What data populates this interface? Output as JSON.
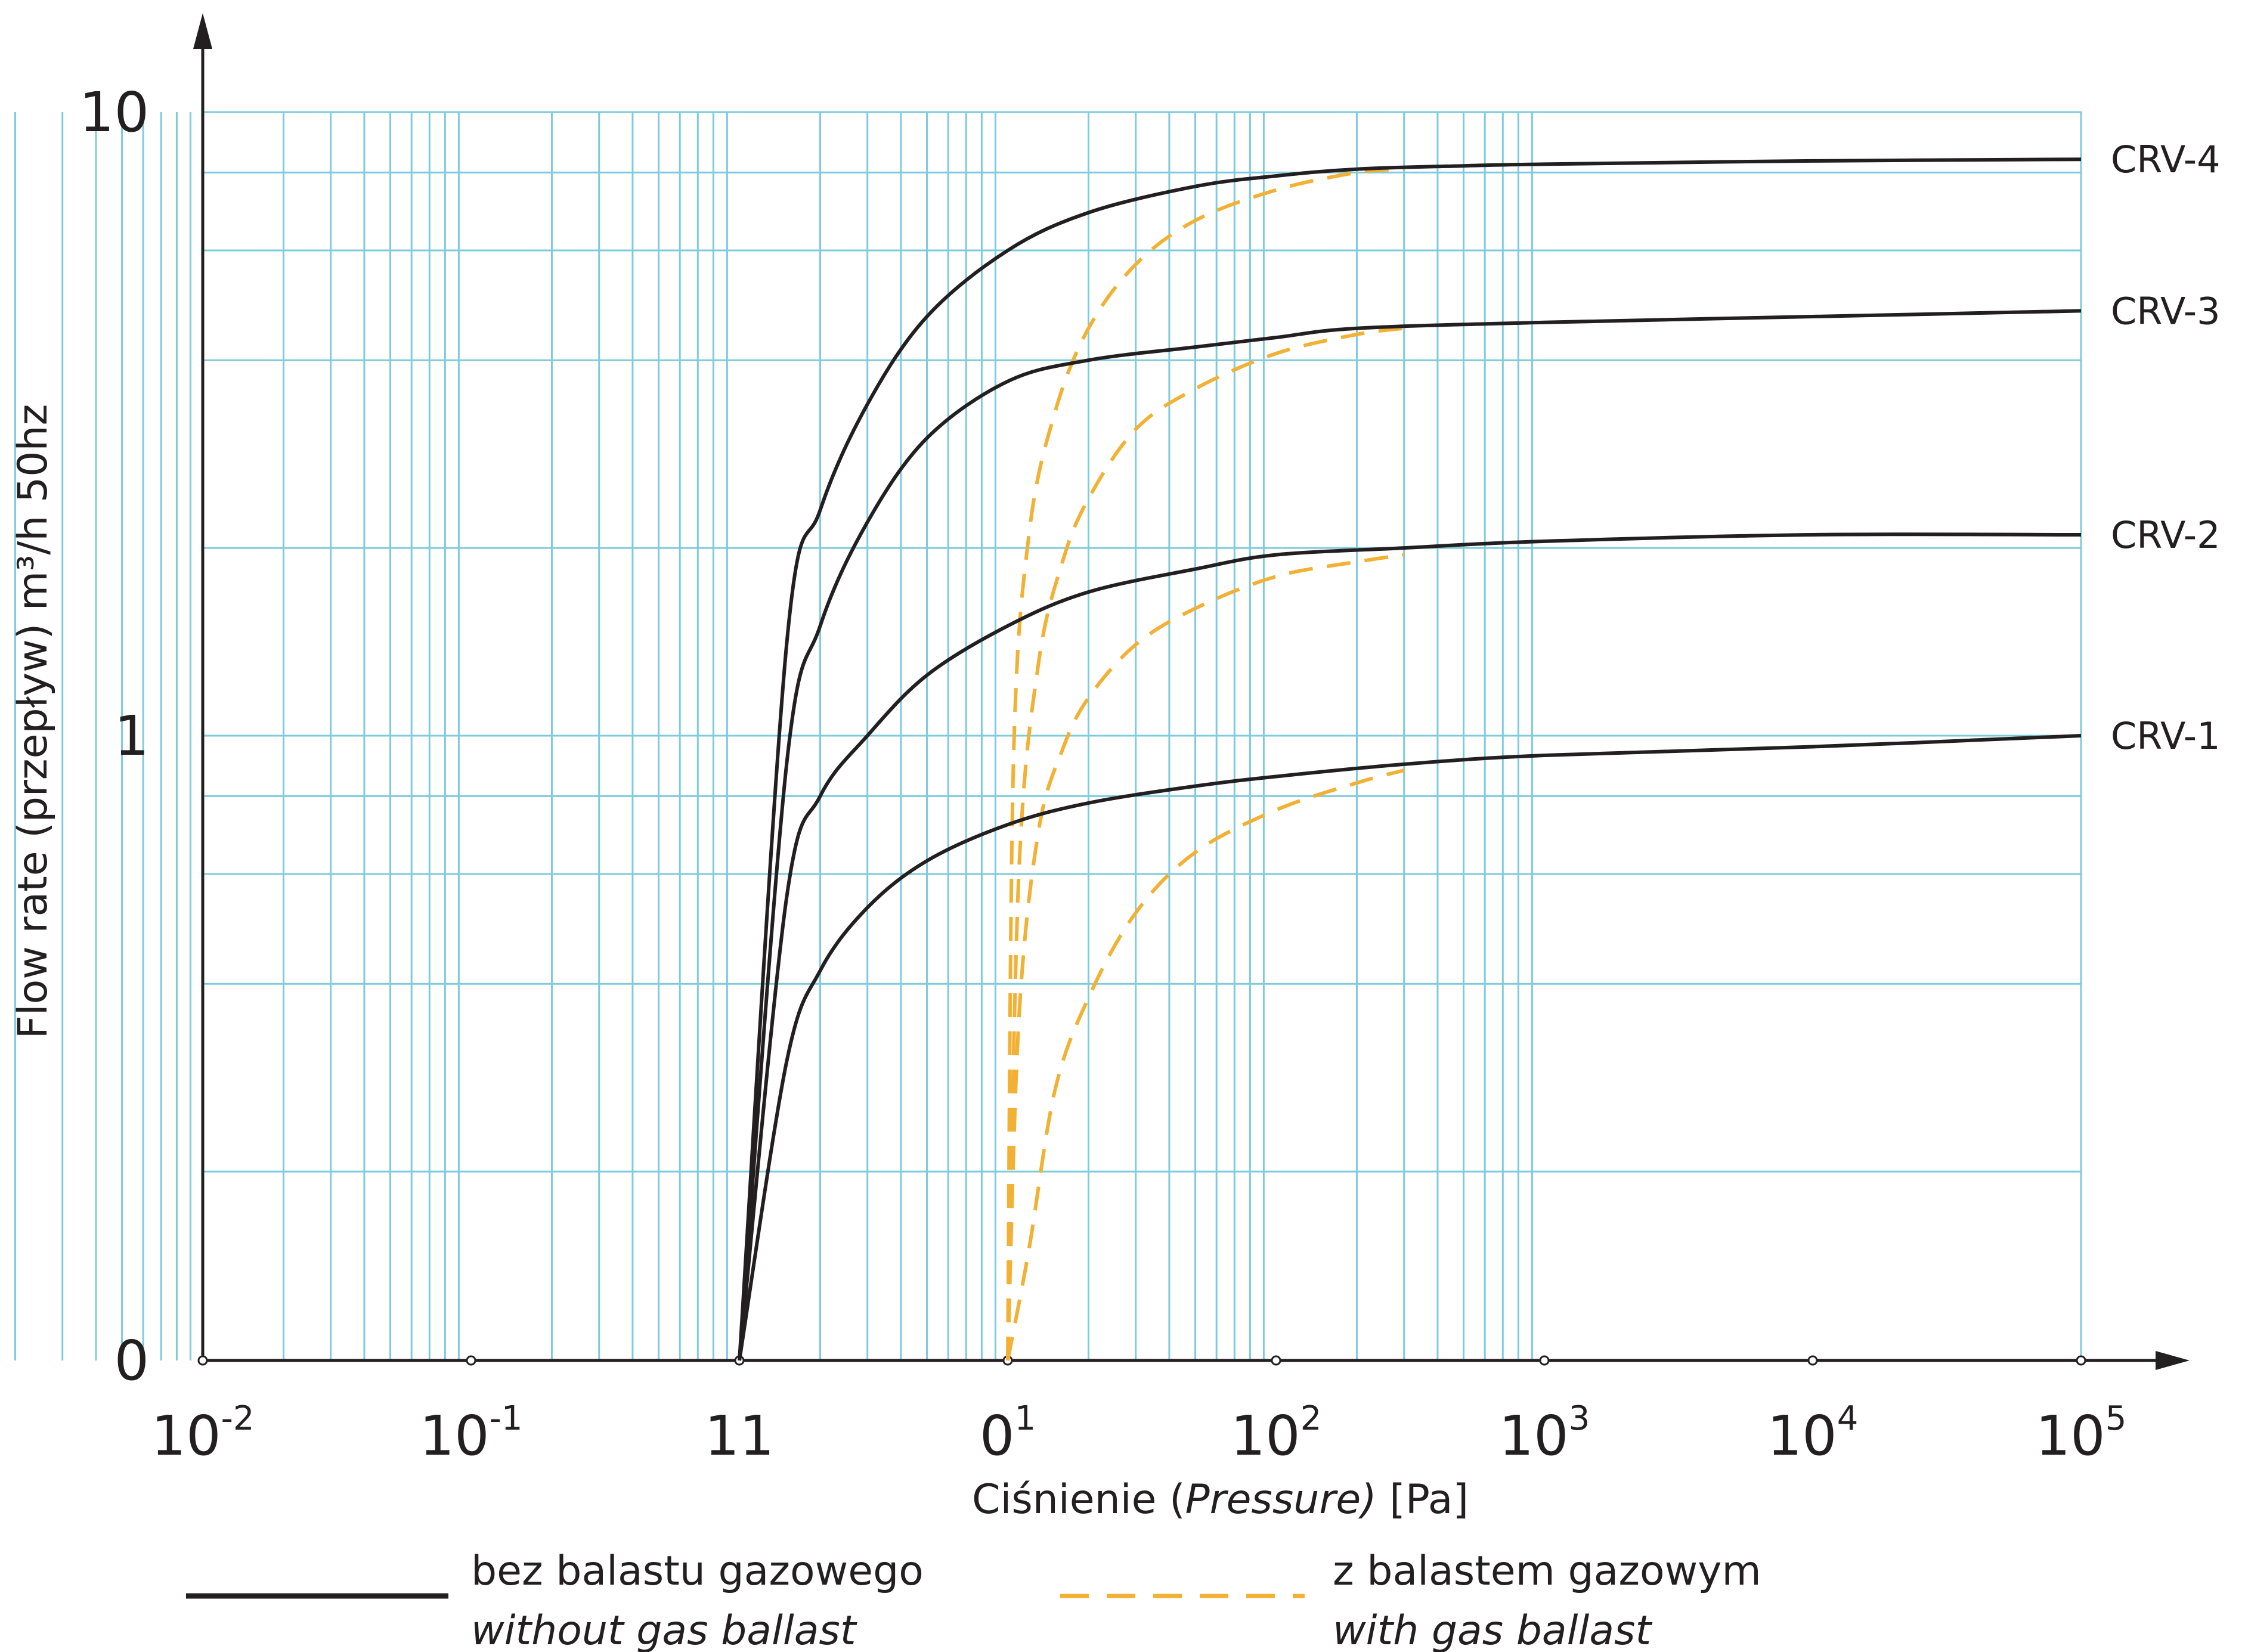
{
  "chart_data": {
    "type": "line",
    "title": "",
    "xlabel": {
      "prefix": "Ciśnienie (",
      "italic": "Pressure)",
      "suffix": " [Pa]"
    },
    "ylabel": "Flow rate (przepływ) m³/h 50hz",
    "x_scale": "log",
    "x_ticks": [
      {
        "base": "10",
        "exp": "-2"
      },
      {
        "base": "10",
        "exp": "-1"
      },
      {
        "base": "11",
        "exp": ""
      },
      {
        "base": "0",
        "exp": "1"
      },
      {
        "base": "10",
        "exp": "2"
      },
      {
        "base": "10",
        "exp": "3"
      },
      {
        "base": "10",
        "exp": "4"
      },
      {
        "base": "10",
        "exp": "5"
      }
    ],
    "y_ticks": [
      "10",
      "1",
      "0"
    ],
    "grid": true,
    "series": [
      {
        "name": "CRV-4",
        "without_ballast": [
          [
            1,
            0
          ],
          [
            1.5,
            1.4
          ],
          [
            2,
            2.3
          ],
          [
            3,
            3.4
          ],
          [
            5,
            4.7
          ],
          [
            10,
            6.0
          ],
          [
            20,
            6.9
          ],
          [
            50,
            7.6
          ],
          [
            100,
            7.9
          ],
          [
            200,
            8.1
          ],
          [
            500,
            8.2
          ],
          [
            1000,
            8.25
          ],
          [
            10000,
            8.35
          ],
          [
            100000,
            8.4
          ]
        ],
        "with_ballast": [
          [
            10,
            0
          ],
          [
            10.5,
            0.9
          ],
          [
            12,
            2.1
          ],
          [
            15,
            3.3
          ],
          [
            20,
            4.5
          ],
          [
            30,
            5.7
          ],
          [
            50,
            6.7
          ],
          [
            100,
            7.5
          ],
          [
            200,
            8.0
          ],
          [
            300,
            8.1
          ]
        ]
      },
      {
        "name": "CRV-3",
        "without_ballast": [
          [
            1,
            0
          ],
          [
            1.5,
            0.9
          ],
          [
            2,
            1.5
          ],
          [
            3,
            2.2
          ],
          [
            5,
            3.0
          ],
          [
            10,
            3.7
          ],
          [
            20,
            4.0
          ],
          [
            50,
            4.2
          ],
          [
            100,
            4.35
          ],
          [
            200,
            4.5
          ],
          [
            1000,
            4.6
          ],
          [
            10000,
            4.7
          ],
          [
            100000,
            4.8
          ]
        ],
        "with_ballast": [
          [
            10,
            0
          ],
          [
            11,
            0.6
          ],
          [
            13,
            1.3
          ],
          [
            16,
            1.9
          ],
          [
            20,
            2.4
          ],
          [
            30,
            3.1
          ],
          [
            50,
            3.6
          ],
          [
            100,
            4.1
          ],
          [
            200,
            4.4
          ],
          [
            300,
            4.5
          ]
        ]
      },
      {
        "name": "CRV-2",
        "without_ballast": [
          [
            1,
            0
          ],
          [
            1.5,
            0.55
          ],
          [
            2,
            0.8
          ],
          [
            3,
            1.0
          ],
          [
            5,
            1.25
          ],
          [
            10,
            1.5
          ],
          [
            20,
            1.7
          ],
          [
            50,
            1.85
          ],
          [
            100,
            1.95
          ],
          [
            300,
            2.0
          ],
          [
            1000,
            2.05
          ],
          [
            10000,
            2.1
          ],
          [
            100000,
            2.1
          ]
        ],
        "with_ballast": [
          [
            10,
            0
          ],
          [
            11,
            0.35
          ],
          [
            13,
            0.7
          ],
          [
            16,
            0.95
          ],
          [
            20,
            1.15
          ],
          [
            30,
            1.4
          ],
          [
            50,
            1.6
          ],
          [
            100,
            1.8
          ],
          [
            200,
            1.9
          ],
          [
            300,
            1.95
          ]
        ]
      },
      {
        "name": "CRV-1",
        "without_ballast": [
          [
            1,
            0
          ],
          [
            1.5,
            0.3
          ],
          [
            2,
            0.42
          ],
          [
            3,
            0.53
          ],
          [
            5,
            0.63
          ],
          [
            10,
            0.72
          ],
          [
            20,
            0.78
          ],
          [
            50,
            0.83
          ],
          [
            100,
            0.86
          ],
          [
            300,
            0.9
          ],
          [
            1000,
            0.93
          ],
          [
            10000,
            0.96
          ],
          [
            100000,
            1.0
          ]
        ],
        "with_ballast": [
          [
            10,
            0
          ],
          [
            12,
            0.15
          ],
          [
            15,
            0.27
          ],
          [
            20,
            0.38
          ],
          [
            30,
            0.52
          ],
          [
            50,
            0.65
          ],
          [
            100,
            0.76
          ],
          [
            200,
            0.84
          ],
          [
            300,
            0.88
          ]
        ]
      }
    ],
    "legend": [
      {
        "style": "solid",
        "line1": "bez balastu gazowego",
        "line2": "without gas ballast"
      },
      {
        "style": "dashed",
        "line1": "z balastem gazowym",
        "line2": "with gas ballast"
      }
    ],
    "colors": {
      "grid": "#7ecbdc",
      "axis": "#231f20",
      "without_ballast": "#231f20",
      "with_ballast": "#f2b134",
      "text": "#231f20"
    }
  }
}
